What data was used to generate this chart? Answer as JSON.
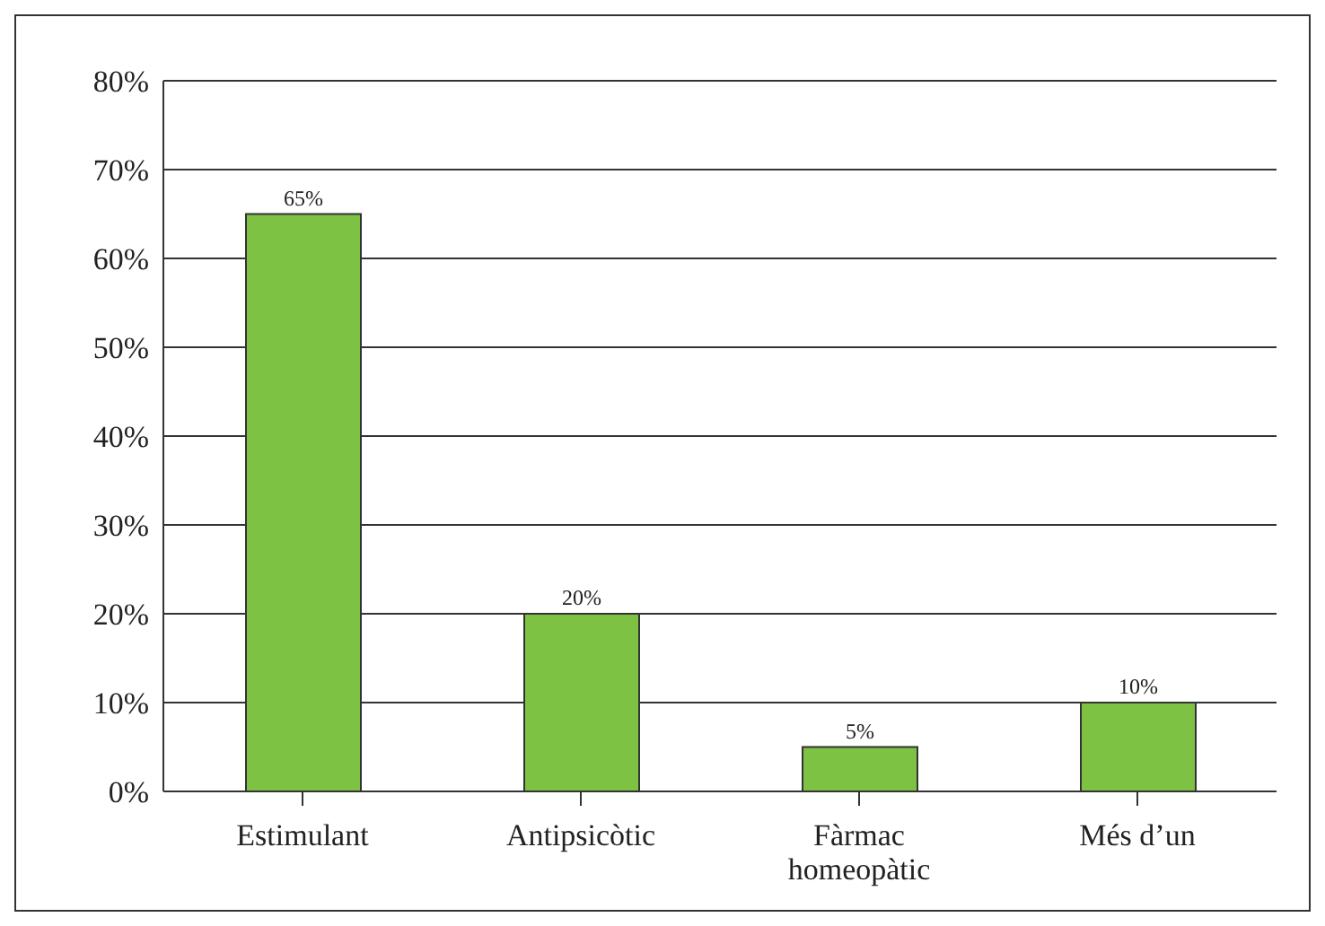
{
  "chart_data": {
    "type": "bar",
    "categories": [
      "Estimulant",
      "Antipsicòtic",
      "Fàrmac homeopàtic",
      "Més d’un"
    ],
    "values": [
      65,
      20,
      5,
      10
    ],
    "color": "#7dc242",
    "value_labels": [
      "65%",
      "20%",
      "5%",
      "10%"
    ],
    "ylim": [
      0,
      80
    ],
    "yticks": [
      {
        "value": 0,
        "label": "0%"
      },
      {
        "value": 10,
        "label": "10%"
      },
      {
        "value": 20,
        "label": "20%"
      },
      {
        "value": 30,
        "label": "30%"
      },
      {
        "value": 40,
        "label": "40%"
      },
      {
        "value": 50,
        "label": "50%"
      },
      {
        "value": 60,
        "label": "60%"
      },
      {
        "value": 70,
        "label": "70%"
      },
      {
        "value": 80,
        "label": "80%"
      }
    ],
    "grid": "y",
    "legend": false
  }
}
